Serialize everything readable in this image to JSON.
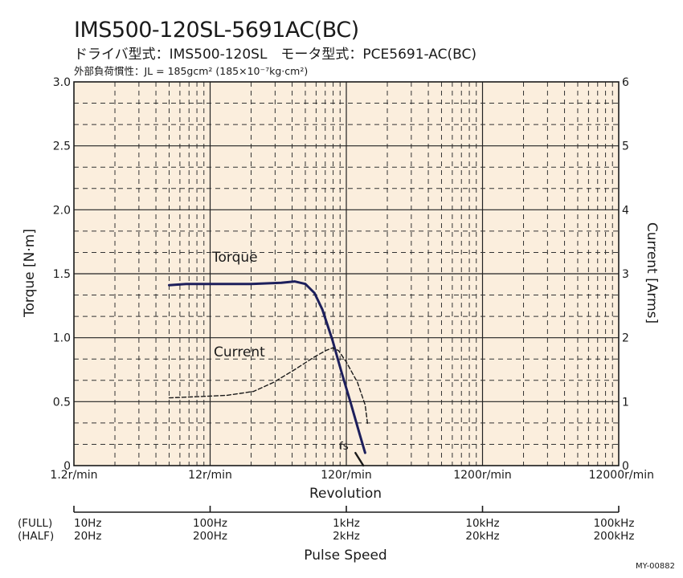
{
  "header": {
    "title": "IMS500-120SL-5691AC(BC)",
    "subtitle": "ドライバ型式：IMS500-120SL　モータ型式：PCE5691-AC(BC)",
    "inertia": "外部負荷慣性：JL = 185gcm² (185×10⁻⁷kg·cm²)"
  },
  "footer_code": "MY-00882",
  "chart_data": {
    "type": "line",
    "title": "IMS500-120SL-5691AC(BC)",
    "xlabel": "Revolution",
    "xscale": "log",
    "xlim": [
      1.2,
      12000
    ],
    "x_ticks": [
      "1.2r/min",
      "12r/min",
      "120r/min",
      "1200r/min",
      "12000r/min"
    ],
    "x_tick_values": [
      1.2,
      12,
      120,
      1200,
      12000
    ],
    "ylabel": "Torque [N·m]",
    "ylim": [
      0,
      3.0
    ],
    "y_ticks": [
      "0",
      "0.5",
      "1.0",
      "1.5",
      "2.0",
      "2.5",
      "3.0"
    ],
    "y_tick_values": [
      0,
      0.5,
      1.0,
      1.5,
      2.0,
      2.5,
      3.0
    ],
    "y2label": "Current [Arms]",
    "y2lim": [
      0,
      6
    ],
    "y2_ticks": [
      "0",
      "1",
      "2",
      "3",
      "4",
      "5",
      "6"
    ],
    "y2_tick_values": [
      0,
      1,
      2,
      3,
      4,
      5,
      6
    ],
    "grid": true,
    "background": "#fbeedd",
    "series": [
      {
        "name": "Torque",
        "axis": "left",
        "style": "solid",
        "color": "#1d1f5c",
        "points": [
          [
            6,
            1.41
          ],
          [
            8,
            1.42
          ],
          [
            12,
            1.42
          ],
          [
            24,
            1.42
          ],
          [
            40,
            1.43
          ],
          [
            50,
            1.44
          ],
          [
            60,
            1.42
          ],
          [
            70,
            1.35
          ],
          [
            80,
            1.22
          ],
          [
            95,
            0.98
          ],
          [
            110,
            0.74
          ],
          [
            130,
            0.48
          ],
          [
            150,
            0.25
          ],
          [
            165,
            0.1
          ]
        ]
      },
      {
        "name": "Current",
        "axis": "right",
        "style": "dashed",
        "color": "#1a1a1a",
        "points": [
          [
            6,
            1.06
          ],
          [
            10,
            1.08
          ],
          [
            16,
            1.1
          ],
          [
            25,
            1.16
          ],
          [
            35,
            1.3
          ],
          [
            50,
            1.5
          ],
          [
            70,
            1.7
          ],
          [
            85,
            1.8
          ],
          [
            95,
            1.84
          ],
          [
            105,
            1.8
          ],
          [
            120,
            1.62
          ],
          [
            145,
            1.3
          ],
          [
            165,
            0.95
          ],
          [
            172,
            0.65
          ]
        ]
      },
      {
        "name": "fs",
        "axis": "left",
        "style": "solid",
        "color": "#1a1a1a",
        "points": [
          [
            140,
            0.1
          ],
          [
            160,
            0.0
          ]
        ]
      }
    ],
    "annotations": [
      "Torque",
      "Current",
      "fs"
    ],
    "pulse_speed": {
      "label": "Pulse Speed",
      "mode_full": "(FULL)",
      "mode_half": "(HALF)",
      "full": [
        "10Hz",
        "100Hz",
        "1kHz",
        "10kHz",
        "100kHz"
      ],
      "half": [
        "20Hz",
        "200Hz",
        "2kHz",
        "20kHz",
        "200kHz"
      ]
    }
  }
}
